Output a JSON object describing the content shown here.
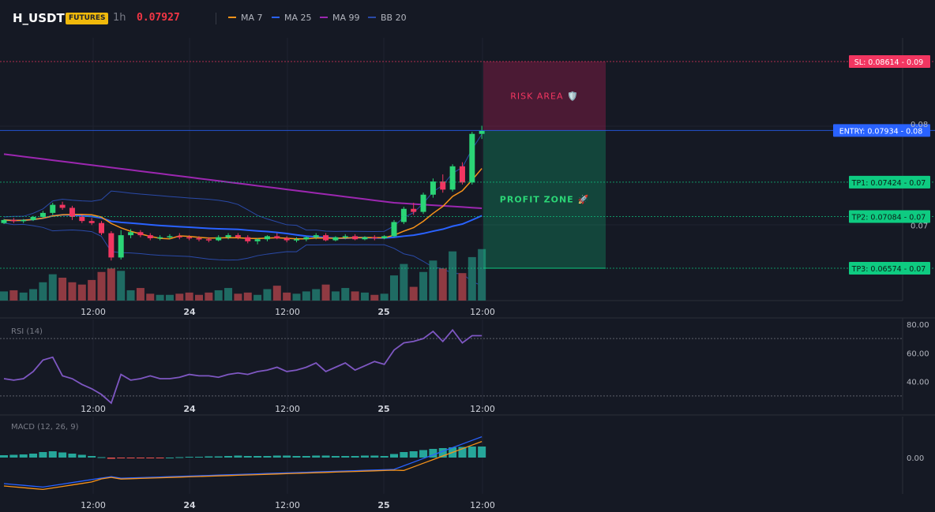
{
  "header": {
    "symbol": "H_USDT",
    "badge": "FUTURES",
    "timeframe": "1h",
    "last_price": "0.07927"
  },
  "legend": [
    {
      "name": "MA 7",
      "color": "#f7931a"
    },
    {
      "name": "MA 25",
      "color": "#2962ff"
    },
    {
      "name": "MA 99",
      "color": "#9c27b0"
    },
    {
      "name": "BB 20",
      "color": "#2a4aa8"
    }
  ],
  "colors": {
    "up": "#26a69a",
    "down": "#ef5350",
    "up_bright": "#2bd576",
    "down_bright": "#f23661",
    "volume_up": "#1f6b63",
    "volume_down": "#8f3a42"
  },
  "price_axis": {
    "ticks": [
      "0.08",
      "0.07"
    ]
  },
  "levels": {
    "sl": {
      "price": 0.08614,
      "label": "SL: 0.08614",
      "axis": "0.09",
      "color": "#f23661"
    },
    "entry": {
      "price": 0.07934,
      "label": "ENTRY: 0.07934",
      "axis": "0.08",
      "color": "#2962ff"
    },
    "tp1": {
      "price": 0.07424,
      "label": "TP1: 0.07424",
      "axis": "0.07",
      "color": "#0ecb81"
    },
    "tp2": {
      "price": 0.07084,
      "label": "TP2: 0.07084",
      "axis": "0.07",
      "color": "#0ecb81"
    },
    "tp3": {
      "price": 0.06574,
      "label": "TP3: 0.06574",
      "axis": "0.07",
      "color": "#0ecb81"
    }
  },
  "zones": {
    "risk": "RISK AREA 🛡️",
    "profit": "PROFIT ZONE 🚀"
  },
  "time_axis": [
    "12:00",
    "24",
    "12:00",
    "25",
    "12:00"
  ],
  "rsi": {
    "label": "RSI (14)",
    "ticks": [
      "80.00",
      "60.00",
      "40.00"
    ]
  },
  "macd": {
    "label": "MACD (12, 26, 9)",
    "ticks": [
      "0.00"
    ]
  },
  "chart_data": {
    "type": "candlestick",
    "n_candles": 50,
    "candles": [
      [
        0.0702,
        0.0706,
        0.0701,
        0.0705
      ],
      [
        0.0705,
        0.0707,
        0.0702,
        0.0704
      ],
      [
        0.0704,
        0.0706,
        0.0702,
        0.0705
      ],
      [
        0.0705,
        0.0709,
        0.0704,
        0.0708
      ],
      [
        0.0708,
        0.0714,
        0.0707,
        0.0712
      ],
      [
        0.0712,
        0.0722,
        0.071,
        0.072
      ],
      [
        0.072,
        0.0723,
        0.0715,
        0.0717
      ],
      [
        0.0717,
        0.0719,
        0.0705,
        0.0708
      ],
      [
        0.0708,
        0.071,
        0.0702,
        0.0704
      ],
      [
        0.0704,
        0.0707,
        0.07,
        0.0702
      ],
      [
        0.0702,
        0.0704,
        0.069,
        0.0692
      ],
      [
        0.0692,
        0.0694,
        0.0665,
        0.0668
      ],
      [
        0.0668,
        0.0695,
        0.0666,
        0.069
      ],
      [
        0.069,
        0.0696,
        0.0687,
        0.0693
      ],
      [
        0.0693,
        0.0695,
        0.0688,
        0.069
      ],
      [
        0.069,
        0.0692,
        0.0685,
        0.0687
      ],
      [
        0.0687,
        0.069,
        0.0685,
        0.0688
      ],
      [
        0.0688,
        0.0691,
        0.0686,
        0.0689
      ],
      [
        0.0689,
        0.0692,
        0.0686,
        0.0688
      ],
      [
        0.0688,
        0.069,
        0.0685,
        0.0687
      ],
      [
        0.0687,
        0.0689,
        0.0684,
        0.0686
      ],
      [
        0.0686,
        0.0688,
        0.0683,
        0.0685
      ],
      [
        0.0685,
        0.069,
        0.0684,
        0.0688
      ],
      [
        0.0688,
        0.0692,
        0.0686,
        0.069
      ],
      [
        0.069,
        0.0692,
        0.0686,
        0.0688
      ],
      [
        0.0688,
        0.069,
        0.0682,
        0.0684
      ],
      [
        0.0684,
        0.0687,
        0.0681,
        0.0686
      ],
      [
        0.0686,
        0.069,
        0.0684,
        0.0689
      ],
      [
        0.0689,
        0.0692,
        0.0686,
        0.0687
      ],
      [
        0.0687,
        0.0689,
        0.0683,
        0.0685
      ],
      [
        0.0685,
        0.0688,
        0.0683,
        0.0686
      ],
      [
        0.0686,
        0.0689,
        0.0684,
        0.0688
      ],
      [
        0.0688,
        0.0692,
        0.0686,
        0.069
      ],
      [
        0.069,
        0.0692,
        0.0684,
        0.0685
      ],
      [
        0.0685,
        0.0689,
        0.0684,
        0.0688
      ],
      [
        0.0688,
        0.0691,
        0.0686,
        0.0689
      ],
      [
        0.0689,
        0.0691,
        0.0685,
        0.0686
      ],
      [
        0.0686,
        0.0689,
        0.0685,
        0.0688
      ],
      [
        0.0688,
        0.069,
        0.0685,
        0.0687
      ],
      [
        0.0687,
        0.069,
        0.0686,
        0.0689
      ],
      [
        0.0689,
        0.0705,
        0.0688,
        0.0703
      ],
      [
        0.0703,
        0.0718,
        0.0701,
        0.0716
      ],
      [
        0.0716,
        0.0722,
        0.071,
        0.0713
      ],
      [
        0.0713,
        0.0732,
        0.0711,
        0.073
      ],
      [
        0.073,
        0.0746,
        0.0727,
        0.0743
      ],
      [
        0.0743,
        0.075,
        0.0732,
        0.0735
      ],
      [
        0.0735,
        0.076,
        0.0733,
        0.0758
      ],
      [
        0.0758,
        0.0762,
        0.074,
        0.0742
      ],
      [
        0.0742,
        0.0792,
        0.074,
        0.079
      ],
      [
        0.079,
        0.0798,
        0.0785,
        0.0793
      ]
    ],
    "volume": [
      8,
      9,
      7,
      10,
      16,
      23,
      20,
      16,
      14,
      18,
      25,
      28,
      26,
      9,
      11,
      6,
      5,
      5,
      6,
      7,
      5,
      7,
      9,
      11,
      6,
      7,
      5,
      10,
      13,
      7,
      6,
      8,
      10,
      14,
      8,
      11,
      8,
      7,
      5,
      6,
      22,
      32,
      12,
      25,
      35,
      28,
      43,
      24,
      38,
      45
    ],
    "rsi": [
      42,
      41,
      42,
      47,
      55,
      57,
      44,
      42,
      38,
      35,
      31,
      25,
      45,
      41,
      42,
      44,
      42,
      42,
      43,
      45,
      44,
      44,
      43,
      45,
      46,
      45,
      47,
      48,
      50,
      47,
      48,
      50,
      53,
      47,
      50,
      53,
      48,
      51,
      54,
      52,
      62,
      67,
      68,
      70,
      75,
      68,
      76,
      67,
      72,
      72
    ],
    "macd_hist": [
      6e-05,
      7e-05,
      8e-05,
      0.0001,
      0.00014,
      0.00016,
      0.00013,
      0.0001,
      7e-05,
      4e-05,
      1e-05,
      -3e-05,
      -2e-05,
      -1e-05,
      -1e-05,
      -1e-05,
      -1e-05,
      -0.0,
      1e-05,
      2e-05,
      2e-05,
      3e-05,
      3e-05,
      4e-05,
      5e-05,
      4e-05,
      4e-05,
      4e-05,
      5e-05,
      5e-05,
      4e-05,
      4e-05,
      5e-05,
      5e-05,
      4e-05,
      4e-05,
      4e-05,
      5e-05,
      5e-05,
      4e-05,
      9e-05,
      0.00014,
      0.00016,
      0.00019,
      0.00022,
      0.00024,
      0.00026,
      0.00027,
      0.00028,
      0.00028
    ]
  }
}
